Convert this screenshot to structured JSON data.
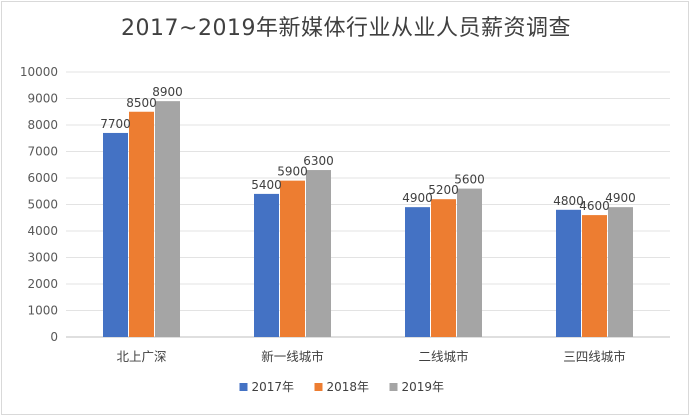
{
  "chart_data": {
    "type": "bar",
    "title": "2017~2019年新媒体行业从业人员薪资调查",
    "categories": [
      "北上广深",
      "新一线城市",
      "二线城市",
      "三四线城市"
    ],
    "series": [
      {
        "name": "2017年",
        "color": "#4472c4",
        "values": [
          7700,
          5400,
          4900,
          4800
        ]
      },
      {
        "name": "2018年",
        "color": "#ed7d31",
        "values": [
          8500,
          5900,
          5200,
          4600
        ]
      },
      {
        "name": "2019年",
        "color": "#a5a5a5",
        "values": [
          8900,
          6300,
          5600,
          4900
        ]
      }
    ],
    "ylim": [
      0,
      10000
    ],
    "yticks": [
      0,
      1000,
      2000,
      3000,
      4000,
      5000,
      6000,
      7000,
      8000,
      9000,
      10000
    ],
    "grid": true,
    "legend_position": "bottom"
  }
}
